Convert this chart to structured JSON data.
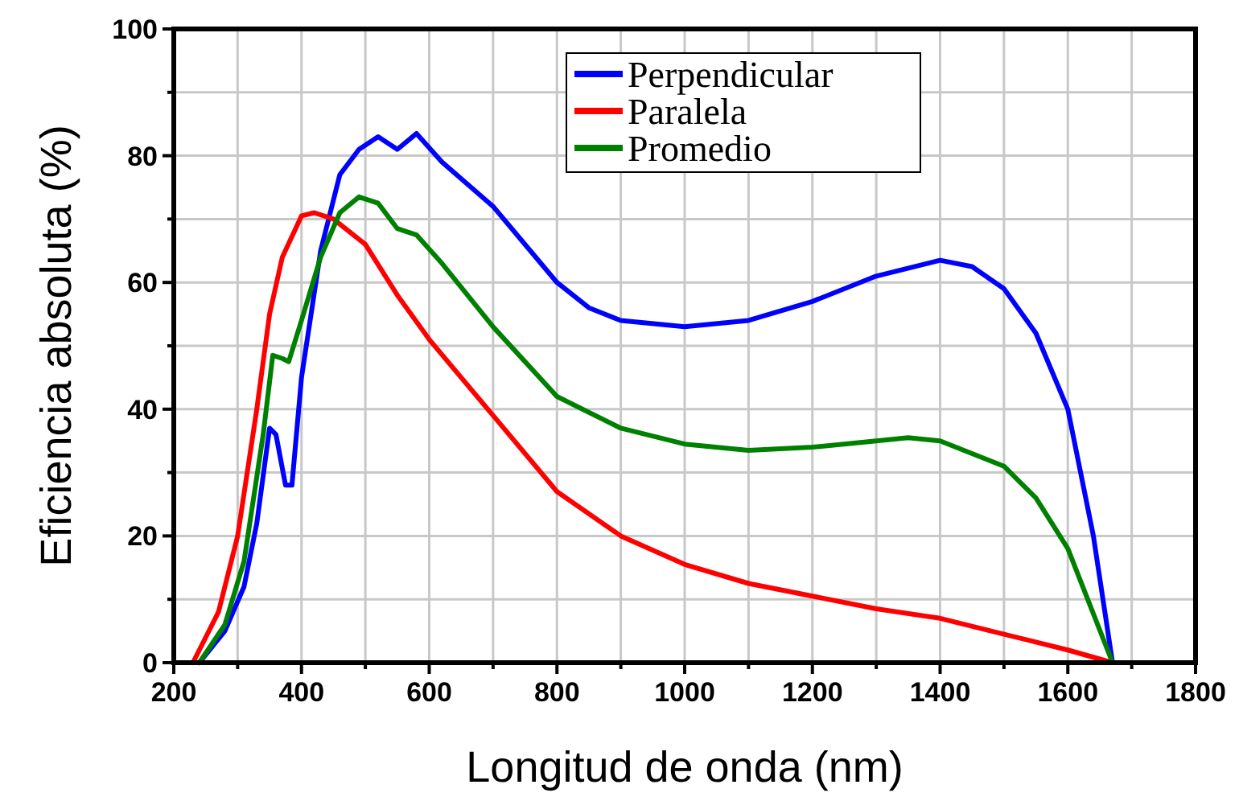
{
  "chart_data": {
    "type": "line",
    "xlabel": "Longitud de onda (nm)",
    "ylabel": "Eficiencia absoluta (%)",
    "xlim": [
      200,
      1800
    ],
    "ylim": [
      0,
      100
    ],
    "xticks": [
      200,
      {
        "value": 300,
        "label": null
      },
      400,
      {
        "value": 500,
        "label": null
      },
      600,
      {
        "value": 700,
        "label": null
      },
      800,
      {
        "value": 900,
        "label": null
      },
      1000,
      {
        "value": 1100,
        "label": null
      },
      1200,
      {
        "value": 1300,
        "label": null
      },
      1400,
      {
        "value": 1500,
        "label": null
      },
      1600,
      {
        "value": 1700,
        "label": null
      },
      1800
    ],
    "yticks": [
      0,
      {
        "value": 10,
        "label": null
      },
      20,
      {
        "value": 30,
        "label": null
      },
      40,
      {
        "value": 50,
        "label": null
      },
      60,
      {
        "value": 70,
        "label": null
      },
      80,
      {
        "value": 90,
        "label": null
      },
      100
    ],
    "grid": true,
    "legend": "top",
    "marker": "none",
    "line_style": "solid",
    "series": [
      {
        "name": "Perpendicular",
        "color": "#0000ff",
        "x": [
          240,
          280,
          310,
          330,
          350,
          360,
          375,
          385,
          400,
          430,
          460,
          490,
          520,
          550,
          580,
          620,
          700,
          800,
          850,
          900,
          1000,
          1100,
          1200,
          1300,
          1400,
          1450,
          1500,
          1550,
          1600,
          1640,
          1670
        ],
        "values": [
          0,
          5,
          12,
          22,
          37,
          36,
          28,
          28,
          45,
          65,
          77,
          81,
          83,
          81,
          83.5,
          79,
          72,
          60,
          56,
          54,
          53,
          54,
          57,
          61,
          63.5,
          62.5,
          59,
          52,
          40,
          20,
          0
        ]
      },
      {
        "name": "Paralela",
        "color": "#ff0000",
        "x": [
          230,
          270,
          300,
          330,
          350,
          370,
          400,
          420,
          450,
          500,
          550,
          600,
          700,
          800,
          900,
          1000,
          1100,
          1200,
          1300,
          1400,
          1500,
          1600,
          1670
        ],
        "values": [
          0,
          8,
          20,
          40,
          55,
          64,
          70.5,
          71,
          70,
          66,
          58,
          51,
          39,
          27,
          20,
          15.5,
          12.5,
          10.5,
          8.5,
          7,
          4.5,
          2,
          0
        ]
      },
      {
        "name": "Promedio",
        "color": "#008000",
        "x": [
          240,
          280,
          310,
          340,
          355,
          370,
          380,
          400,
          430,
          460,
          490,
          520,
          550,
          580,
          620,
          700,
          800,
          900,
          1000,
          1100,
          1200,
          1300,
          1350,
          1400,
          1500,
          1550,
          1600,
          1670
        ],
        "values": [
          0,
          6,
          16,
          36,
          48.5,
          48,
          47.5,
          54,
          64,
          71,
          73.5,
          72.5,
          68.5,
          67.5,
          63,
          53,
          42,
          37,
          34.5,
          33.5,
          34,
          35,
          35.5,
          35,
          31,
          26,
          18,
          0
        ]
      }
    ]
  }
}
